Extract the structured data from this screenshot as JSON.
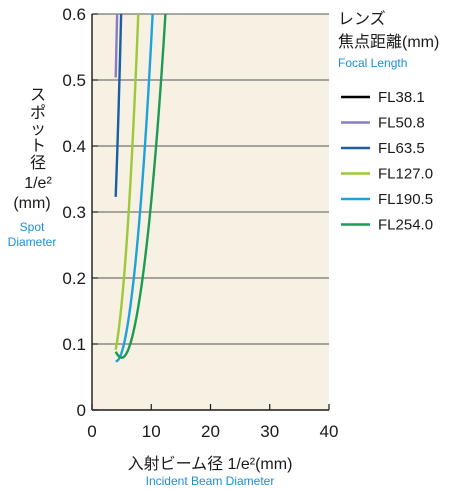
{
  "chart_data": {
    "type": "line",
    "xlim": [
      0,
      40
    ],
    "ylim": [
      0,
      0.6
    ],
    "xticks": [
      "0",
      "10",
      "20",
      "30",
      "40"
    ],
    "yticks": [
      "0",
      "0.1",
      "0.2",
      "0.3",
      "0.4",
      "0.5",
      "0.6"
    ],
    "grid": "horizontal",
    "background": "#f7f1e3",
    "ylabel_jp_lines": [
      "ス",
      "ポ",
      "ッ",
      "ト",
      "径"
    ],
    "ylabel_unit": "1/e²",
    "ylabel_unit_mm": "(mm)",
    "ylabel_en_lines": [
      "Spot",
      "Diameter"
    ],
    "xlabel_jp": "入射ビーム径 1/e²(mm)",
    "xlabel_en": "Incident Beam Diameter",
    "legend_title_jp_1": "レンズ",
    "legend_title_jp_2": "焦点距離(mm)",
    "legend_title_en": "Focal Length",
    "legend_position": "right",
    "series": [
      {
        "name": "FL38.1",
        "color": "#000000",
        "f": 38.1
      },
      {
        "name": "FL50.8",
        "color": "#8a7cc2",
        "f": 50.8
      },
      {
        "name": "FL63.5",
        "color": "#1b5ea6",
        "f": 63.5
      },
      {
        "name": "FL127.0",
        "color": "#9cc83a",
        "f": 127.0
      },
      {
        "name": "FL190.5",
        "color": "#1ea2dc",
        "f": 190.5
      },
      {
        "name": "FL254.0",
        "color": "#1e9a55",
        "f": 254.0
      }
    ]
  }
}
